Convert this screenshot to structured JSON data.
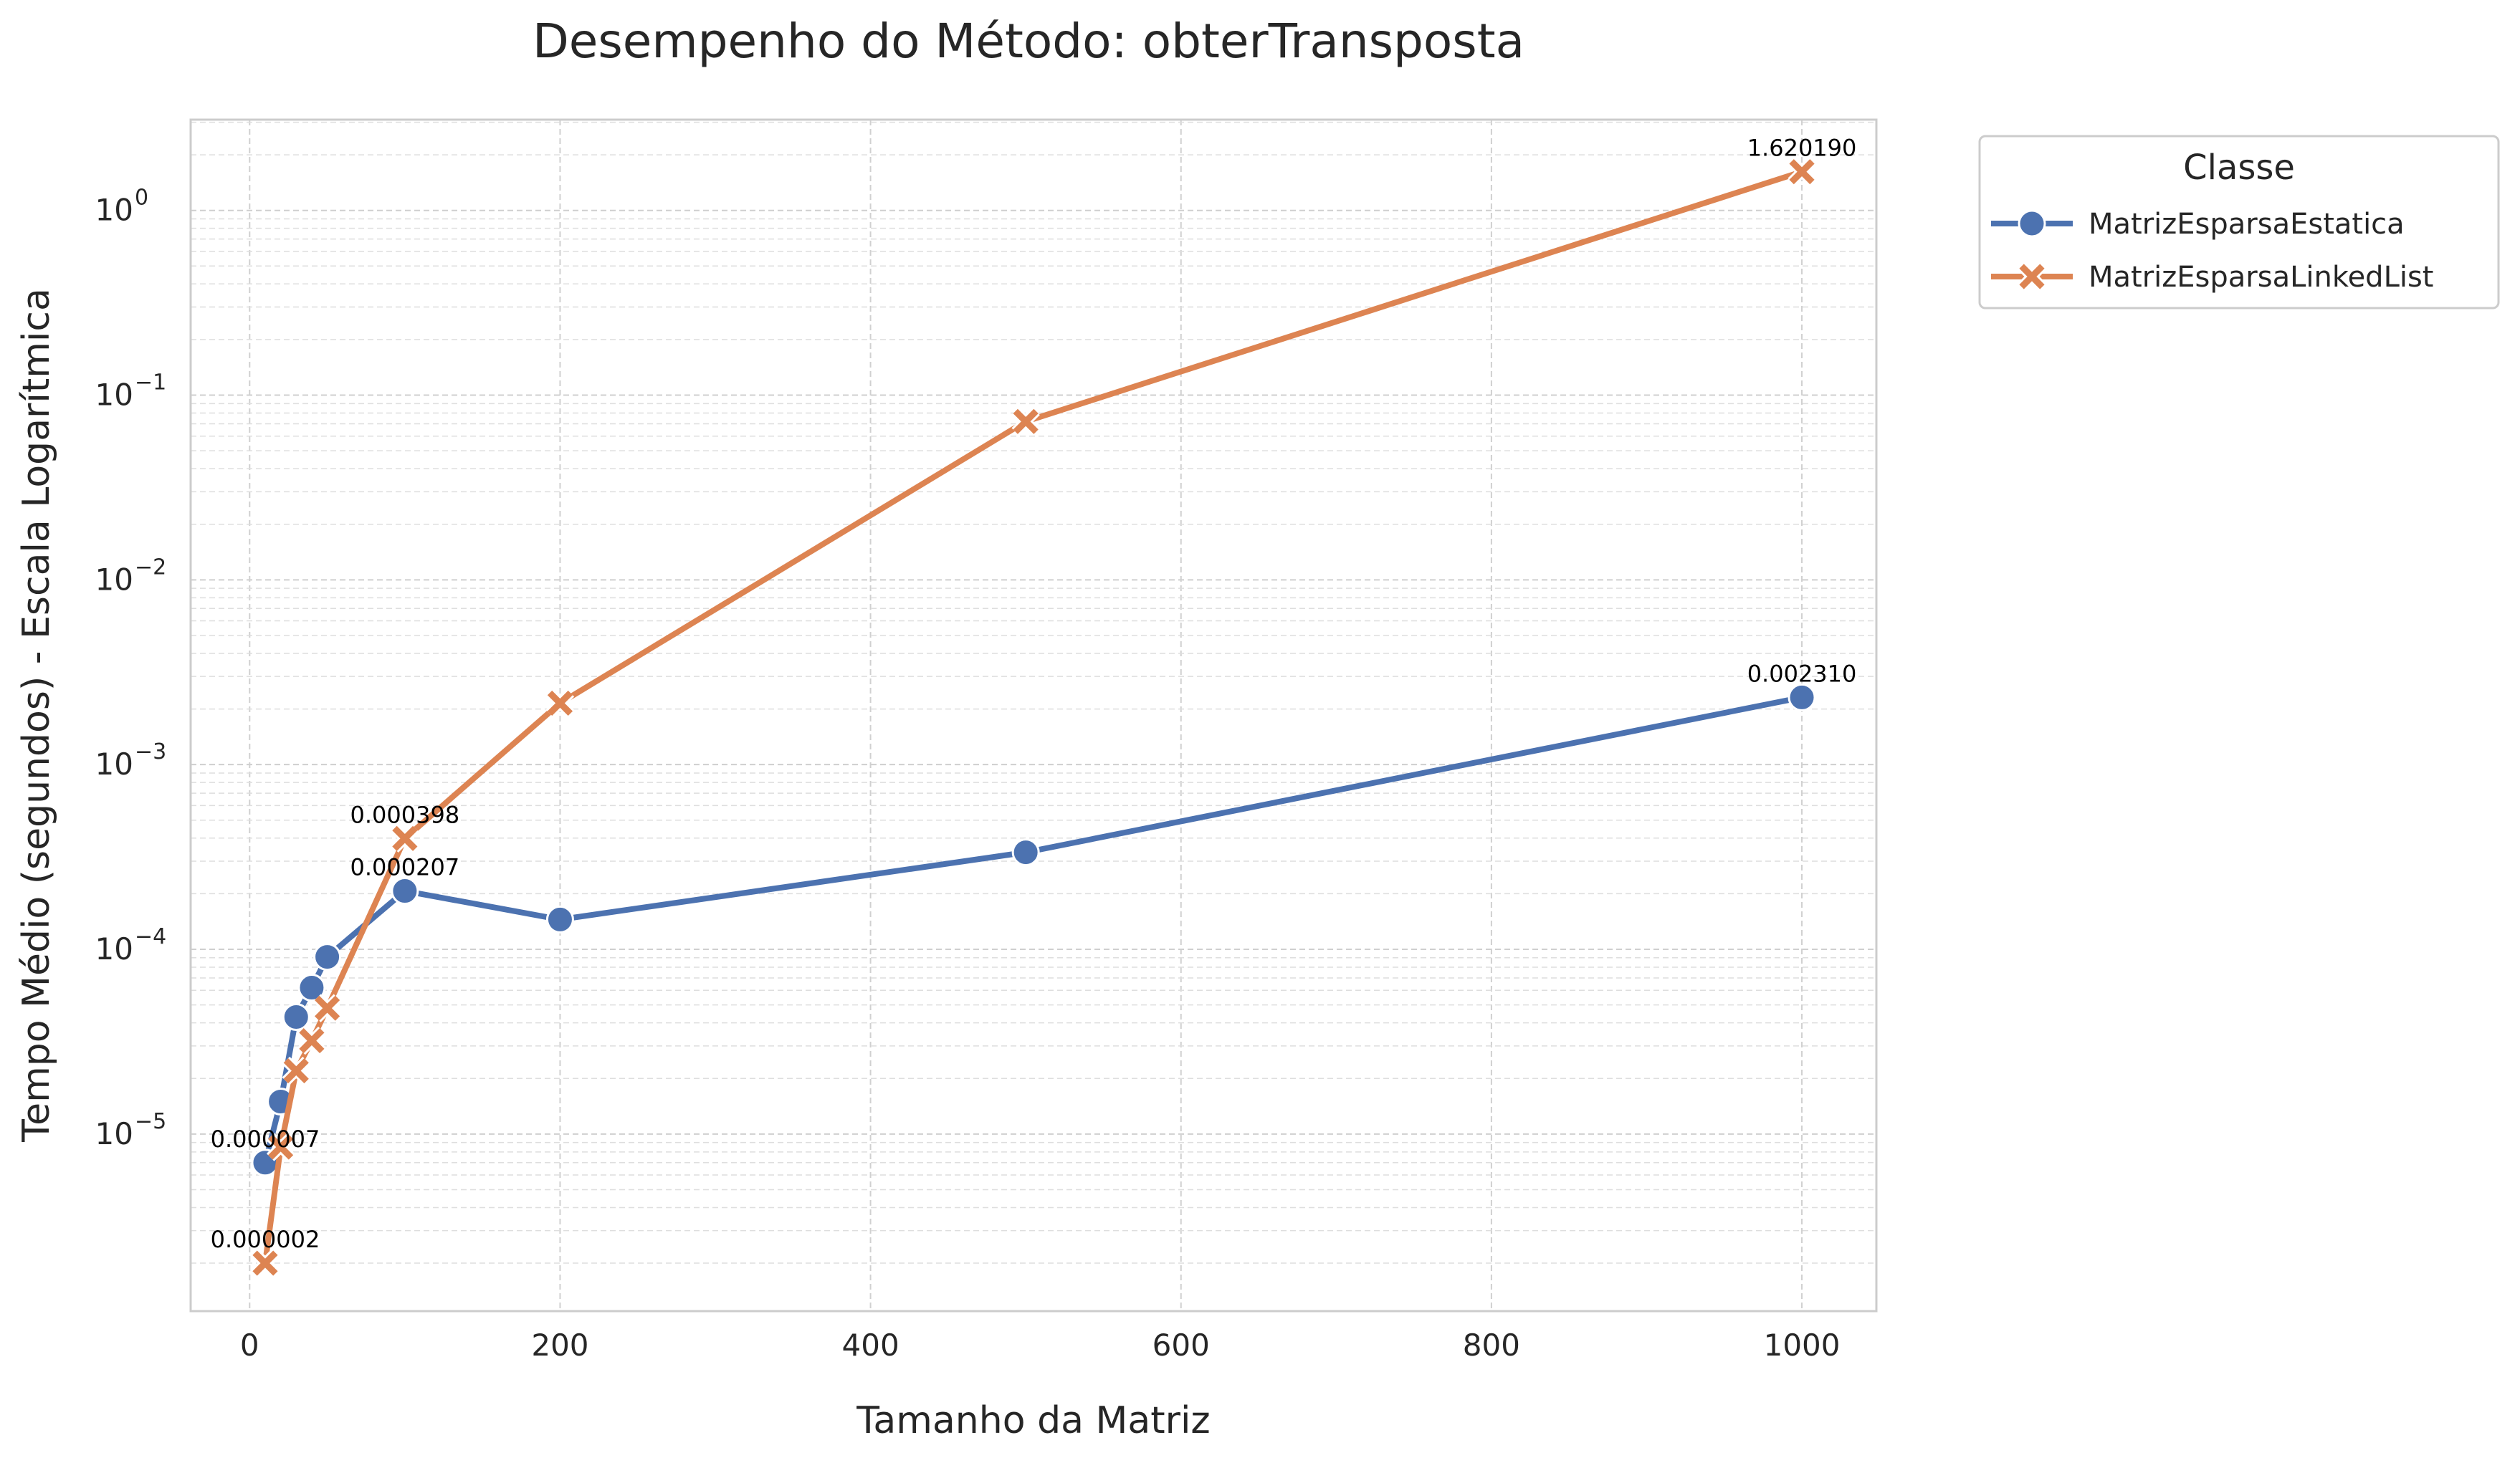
{
  "chart_data": {
    "type": "line",
    "title": "Desempenho do Método: obterTransposta",
    "xlabel": "Tamanho da Matriz",
    "ylabel": "Tempo Médio (segundos) - Escala Logarítmica",
    "x_scale": "linear",
    "y_scale": "log",
    "xlim": [
      -38,
      1048
    ],
    "ylim": [
      1.1e-06,
      3.1
    ],
    "x_ticks": [
      0,
      200,
      400,
      600,
      800,
      1000
    ],
    "x_tick_labels": [
      "0",
      "200",
      "400",
      "600",
      "800",
      "1000"
    ],
    "y_ticks": [
      1e-05,
      0.0001,
      0.001,
      0.01,
      0.1,
      1
    ],
    "y_tick_labels": [
      {
        "base": "10",
        "exp": "−5"
      },
      {
        "base": "10",
        "exp": "−4"
      },
      {
        "base": "10",
        "exp": "−3"
      },
      {
        "base": "10",
        "exp": "−2"
      },
      {
        "base": "10",
        "exp": "−1"
      },
      {
        "base": "10",
        "exp": "0"
      }
    ],
    "grid": true,
    "legend": {
      "title": "Classe",
      "placement": "outside-right"
    },
    "series": [
      {
        "name": "MatrizEsparsaEstatica",
        "color": "#4c72b0",
        "marker": "circle",
        "x": [
          10,
          20,
          30,
          40,
          50,
          100,
          200,
          500,
          1000
        ],
        "y": [
          7e-06,
          1.5e-05,
          4.3e-05,
          6.2e-05,
          9.1e-05,
          0.000207,
          0.000145,
          0.000335,
          0.00231
        ]
      },
      {
        "name": "MatrizEsparsaLinkedList",
        "color": "#dd8452",
        "marker": "x",
        "x": [
          10,
          20,
          30,
          40,
          50,
          100,
          200,
          500,
          1000
        ],
        "y": [
          2e-06,
          8.5e-06,
          2.2e-05,
          3.2e-05,
          4.8e-05,
          0.000398,
          0.00215,
          0.072,
          1.62019
        ]
      }
    ],
    "annotations": [
      {
        "text": "0.000007",
        "x": 10,
        "y": 7e-06
      },
      {
        "text": "0.000002",
        "x": 10,
        "y": 2e-06
      },
      {
        "text": "0.000398",
        "x": 100,
        "y": 0.000398
      },
      {
        "text": "0.000207",
        "x": 100,
        "y": 0.000207
      },
      {
        "text": "0.002310",
        "x": 1000,
        "y": 0.00231
      },
      {
        "text": "1.620190",
        "x": 1000,
        "y": 1.62019
      }
    ]
  }
}
